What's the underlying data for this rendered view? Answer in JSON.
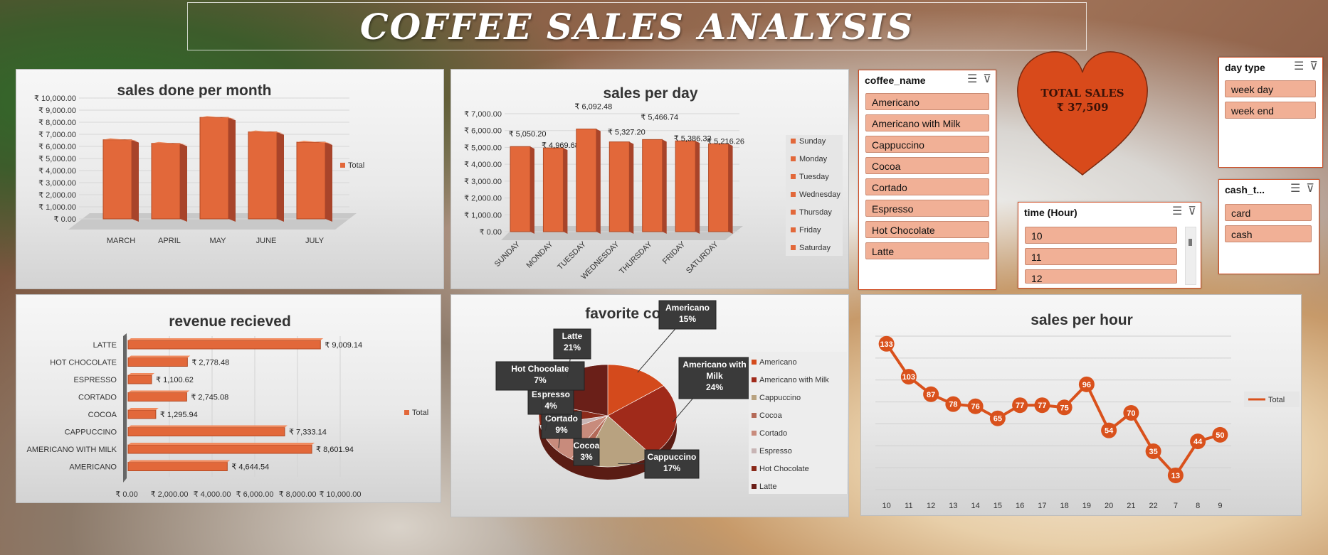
{
  "dashboard": {
    "title": "COFFEE SALES ANALYSIS"
  },
  "total_sales": {
    "label": "TOTAL SALES",
    "value": "₹ 37,509",
    "color": "#d84a1b"
  },
  "colors": {
    "bar": "#e2683a",
    "bar_dark": "#a8442a",
    "bar_top": "#f08a5e",
    "line": "#d9511c",
    "slicer_item": "#f1b096"
  },
  "slicers": {
    "coffee_name": {
      "header": "coffee_name",
      "items": [
        "Americano",
        "Americano with Milk",
        "Cappuccino",
        "Cocoa",
        "Cortado",
        "Espresso",
        "Hot Chocolate",
        "Latte"
      ]
    },
    "time_hour": {
      "header": "time (Hour)",
      "items": [
        "10",
        "11",
        "12"
      ]
    },
    "day_type": {
      "header": "day type",
      "items": [
        "week day",
        "week end"
      ]
    },
    "cash_type": {
      "header": "cash_t...",
      "items": [
        "card",
        "cash"
      ]
    }
  },
  "chart_data": [
    {
      "id": "monthly",
      "type": "bar",
      "title": "sales done per month",
      "categories": [
        "MARCH",
        "APRIL",
        "MAY",
        "JUNE",
        "JULY"
      ],
      "values": [
        6550,
        6250,
        8400,
        7200,
        6350
      ],
      "ylim": [
        0,
        10000
      ],
      "yticks": [
        "₹ 0.00",
        "₹ 1,000.00",
        "₹ 2,000.00",
        "₹ 3,000.00",
        "₹ 4,000.00",
        "₹ 5,000.00",
        "₹ 6,000.00",
        "₹ 7,000.00",
        "₹ 8,000.00",
        "₹ 9,000.00",
        "₹ 10,000.00"
      ],
      "legend": [
        "Total"
      ],
      "legend_position": "right",
      "grid": true
    },
    {
      "id": "daily",
      "type": "bar",
      "title": "sales per day",
      "categories": [
        "SUNDAY",
        "MONDAY",
        "TUESDAY",
        "WEDNESDAY",
        "THURSDAY",
        "FRIDAY",
        "SATURDAY"
      ],
      "values": [
        5050.2,
        4969.68,
        6092.48,
        5327.2,
        5466.74,
        5386.32,
        5216.26
      ],
      "data_labels": [
        "₹ 5,050.20",
        "₹ 4,969.68",
        "₹ 6,092.48",
        "₹ 5,327.20",
        "₹ 5,466.74",
        "₹ 5,386.32",
        "₹ 5,216.26"
      ],
      "ylim": [
        0,
        7000
      ],
      "yticks": [
        "₹ 0.00",
        "₹ 1,000.00",
        "₹ 2,000.00",
        "₹ 3,000.00",
        "₹ 4,000.00",
        "₹ 5,000.00",
        "₹ 6,000.00",
        "₹ 7,000.00"
      ],
      "legend": [
        "Sunday",
        "Monday",
        "Tuesday",
        "Wednesday",
        "Thursday",
        "Friday",
        "Saturday"
      ],
      "legend_position": "right",
      "grid": true
    },
    {
      "id": "revenue",
      "type": "bar",
      "orientation": "horizontal",
      "title": "revenue recieved",
      "categories": [
        "LATTE",
        "HOT CHOCOLATE",
        "ESPRESSO",
        "CORTADO",
        "COCOA",
        "CAPPUCCINO",
        "AMERICANO WITH MILK",
        "AMERICANO"
      ],
      "values": [
        9009.14,
        2778.48,
        1100.62,
        2745.08,
        1295.94,
        7333.14,
        8601.94,
        4644.54
      ],
      "data_labels": [
        "₹ 9,009.14",
        "₹ 2,778.48",
        "₹ 1,100.62",
        "₹ 2,745.08",
        "₹ 1,295.94",
        "₹ 7,333.14",
        "₹ 8,601.94",
        "₹ 4,644.54"
      ],
      "xlim": [
        0,
        10000
      ],
      "xticks": [
        "₹ 0.00",
        "₹ 2,000.00",
        "₹ 4,000.00",
        "₹ 6,000.00",
        "₹ 8,000.00",
        "₹ 10,000.00"
      ],
      "legend": [
        "Total"
      ],
      "legend_position": "right",
      "grid": true
    },
    {
      "id": "favorite",
      "type": "pie",
      "title": "favorite coffee",
      "categories": [
        "Americano",
        "Americano with Milk",
        "Cappuccino",
        "Cocoa",
        "Cortado",
        "Espresso",
        "Hot Chocolate",
        "Latte"
      ],
      "values": [
        15,
        24,
        17,
        3,
        9,
        4,
        7,
        21
      ],
      "data_labels": [
        [
          "Americano",
          "15%"
        ],
        [
          "Americano with",
          "Milk",
          "24%"
        ],
        [
          "Cappuccino",
          "17%"
        ],
        [
          "Cocoa",
          "3%"
        ],
        [
          "Cortado",
          "9%"
        ],
        [
          "Espresso",
          "4%"
        ],
        [
          "Hot Chocolate",
          "7%"
        ],
        [
          "Latte",
          "21%"
        ]
      ],
      "colors": [
        "#d44a1c",
        "#a02a1a",
        "#b8a280",
        "#b46a58",
        "#c88b7c",
        "#c8b5b5",
        "#8a2a1a",
        "#6a1f18"
      ],
      "legend_position": "right"
    },
    {
      "id": "hourly",
      "type": "line",
      "title": "sales per hour",
      "categories": [
        "10",
        "11",
        "12",
        "13",
        "14",
        "15",
        "16",
        "17",
        "18",
        "19",
        "20",
        "21",
        "22",
        "7",
        "8",
        "9"
      ],
      "values": [
        133,
        103,
        87,
        78,
        76,
        65,
        77,
        77,
        75,
        96,
        54,
        70,
        35,
        13,
        44,
        50
      ],
      "ylim": [
        0,
        140
      ],
      "legend": [
        "Total"
      ],
      "legend_position": "right",
      "grid": true
    }
  ]
}
